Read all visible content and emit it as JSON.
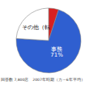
{
  "chart_data": {
    "type": "pie",
    "categories": [
      null,
      "事務",
      "その他（転"
    ],
    "values": [
      5,
      71,
      24
    ],
    "value_labels": [
      null,
      "71%",
      null
    ],
    "colors": [
      "#d82020",
      "#2f5fd0",
      "#ffffff"
    ],
    "data_labels": true,
    "note": "回答数 7,800店　2007年時期（カ～6年平均）"
  }
}
